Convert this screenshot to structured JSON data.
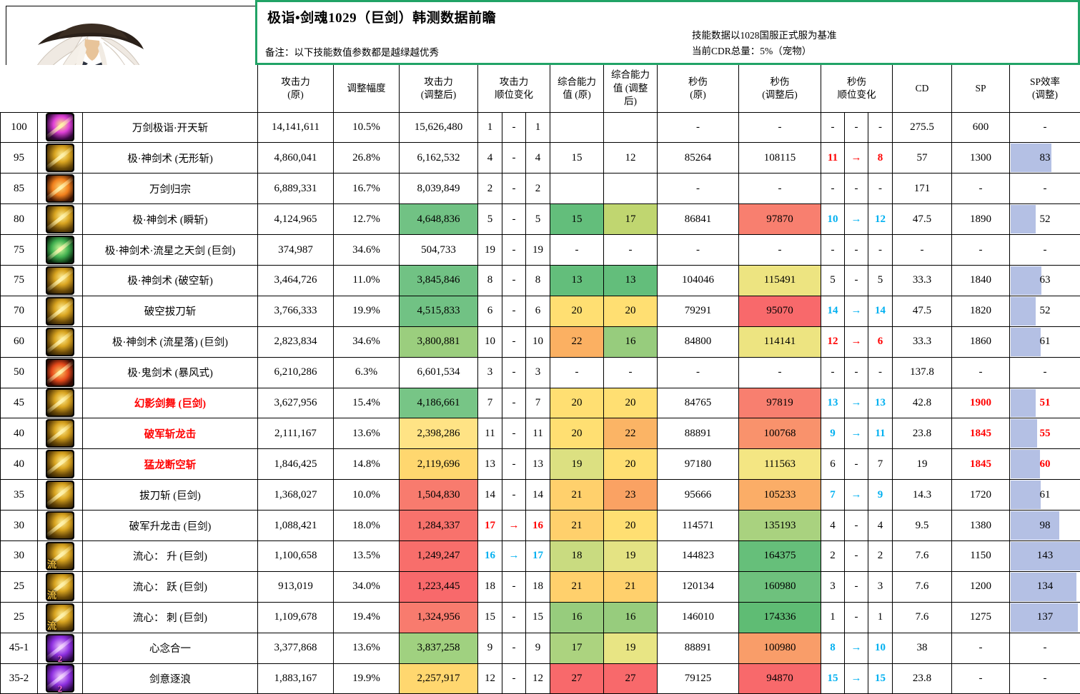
{
  "title_box": {
    "title": "极诣•剑魂1029（巨剑）韩测数据前瞻",
    "note": "备注：以下技能数值参数都是越绿越优秀",
    "note_right_line1": "技能数据以1028国服正式服为基准",
    "note_right_line2": "当前CDR总量：5%（宠物）",
    "border_color": "#21A366"
  },
  "table": {
    "header_cells": [
      {
        "label": "攻击力\n(原)"
      },
      {
        "label": "调整幅度"
      },
      {
        "label": "攻击力\n(调整后)"
      },
      {
        "label": "攻击力\n顺位变化",
        "span": 3
      },
      {
        "label": "综合能力\n值 (原)"
      },
      {
        "label": "综合能力\n值 (调整\n后)"
      },
      {
        "label": "秒伤\n(原)"
      },
      {
        "label": "秒伤\n(调整后)"
      },
      {
        "label": "秒伤\n顺位变化",
        "span": 3
      },
      {
        "label": "CD"
      },
      {
        "label": "SP"
      },
      {
        "label": "SP效率\n(调整)"
      }
    ],
    "bar_color": "#B4C0E4",
    "rank_colors": {
      "red": "#FF0000",
      "blue": "#00B0F0"
    },
    "rows": [
      {
        "level": "100",
        "icon_palette": "ic-magenta",
        "icon_char": "",
        "icon_badge": "",
        "name": "万剑极诣·开天斩",
        "name_red": false,
        "atk_orig": "14,141,611",
        "adjust": "10.5%",
        "atk_new": "15,626,480",
        "atk_new_bg": "",
        "atk_rank": [
          "1",
          "-",
          "1"
        ],
        "atk_rank_color": "black",
        "comp_orig": "",
        "comp_orig_bg": "",
        "comp_new": "",
        "comp_new_bg": "",
        "dps_orig": "-",
        "dps_new": "-",
        "dps_new_bg": "",
        "dps_rank": [
          "-",
          "-",
          "-"
        ],
        "dps_rank_color": "black",
        "cd": "275.5",
        "sp": "600",
        "sp_red": false,
        "eff": "-",
        "eff_red": false,
        "eff_bar": 0
      },
      {
        "level": "95",
        "icon_palette": "ic-gold",
        "icon_char": "",
        "icon_badge": "",
        "name": "极·神剑术 (无形斩)",
        "name_red": false,
        "atk_orig": "4,860,041",
        "adjust": "26.8%",
        "atk_new": "6,162,532",
        "atk_new_bg": "",
        "atk_rank": [
          "4",
          "-",
          "4"
        ],
        "atk_rank_color": "black",
        "comp_orig": "15",
        "comp_orig_bg": "",
        "comp_new": "12",
        "comp_new_bg": "",
        "dps_orig": "85264",
        "dps_new": "108115",
        "dps_new_bg": "",
        "dps_rank": [
          "11",
          "→",
          "8"
        ],
        "dps_rank_color": "red",
        "cd": "57",
        "sp": "1300",
        "sp_red": false,
        "eff": "83",
        "eff_red": false,
        "eff_bar": 58
      },
      {
        "level": "85",
        "icon_palette": "ic-orange",
        "icon_char": "",
        "icon_badge": "",
        "name": "万剑归宗",
        "name_red": false,
        "atk_orig": "6,889,331",
        "adjust": "16.7%",
        "atk_new": "8,039,849",
        "atk_new_bg": "",
        "atk_rank": [
          "2",
          "-",
          "2"
        ],
        "atk_rank_color": "black",
        "comp_orig": "",
        "comp_orig_bg": "",
        "comp_new": "",
        "comp_new_bg": "",
        "dps_orig": "-",
        "dps_new": "-",
        "dps_new_bg": "",
        "dps_rank": [
          "-",
          "-",
          "-"
        ],
        "dps_rank_color": "black",
        "cd": "171",
        "sp": "-",
        "sp_red": false,
        "eff": "-",
        "eff_red": false,
        "eff_bar": 0
      },
      {
        "level": "80",
        "icon_palette": "ic-gold",
        "icon_char": "",
        "icon_badge": "",
        "name": "极·神剑术 (瞬斩)",
        "name_red": false,
        "atk_orig": "4,124,965",
        "adjust": "12.7%",
        "atk_new": "4,648,836",
        "atk_new_bg": "#71C284",
        "atk_rank": [
          "5",
          "-",
          "5"
        ],
        "atk_rank_color": "black",
        "comp_orig": "15",
        "comp_orig_bg": "#63BE7B",
        "comp_new": "17",
        "comp_new_bg": "#C0D670",
        "dps_orig": "86841",
        "dps_new": "97870",
        "dps_new_bg": "#F87F6F",
        "dps_rank": [
          "10",
          "→",
          "12"
        ],
        "dps_rank_color": "blue",
        "cd": "47.5",
        "sp": "1890",
        "sp_red": false,
        "eff": "52",
        "eff_red": false,
        "eff_bar": 36
      },
      {
        "level": "75",
        "icon_palette": "ic-green",
        "icon_char": "",
        "icon_badge": "",
        "name": "极·神剑术·流星之天剑 (巨剑)",
        "name_red": false,
        "atk_orig": "374,987",
        "adjust": "34.6%",
        "atk_new": "504,733",
        "atk_new_bg": "",
        "atk_rank": [
          "19",
          "-",
          "19"
        ],
        "atk_rank_color": "black",
        "comp_orig": "-",
        "comp_orig_bg": "",
        "comp_new": "-",
        "comp_new_bg": "",
        "dps_orig": "-",
        "dps_new": "-",
        "dps_new_bg": "",
        "dps_rank": [
          "-",
          "-",
          "-"
        ],
        "dps_rank_color": "black",
        "cd": "-",
        "sp": "-",
        "sp_red": false,
        "eff": "-",
        "eff_red": false,
        "eff_bar": 0
      },
      {
        "level": "75",
        "icon_palette": "ic-gold",
        "icon_char": "",
        "icon_badge": "",
        "name": "极·神剑术 (破空斩)",
        "name_red": false,
        "atk_orig": "3,464,726",
        "adjust": "11.0%",
        "atk_new": "3,845,846",
        "atk_new_bg": "#71C284",
        "atk_rank": [
          "8",
          "-",
          "8"
        ],
        "atk_rank_color": "black",
        "comp_orig": "13",
        "comp_orig_bg": "#63BE7B",
        "comp_new": "13",
        "comp_new_bg": "#63BE7B",
        "dps_orig": "104046",
        "dps_new": "115491",
        "dps_new_bg": "#EDE481",
        "dps_rank": [
          "5",
          "-",
          "5"
        ],
        "dps_rank_color": "black",
        "cd": "33.3",
        "sp": "1840",
        "sp_red": false,
        "eff": "63",
        "eff_red": false,
        "eff_bar": 44
      },
      {
        "level": "70",
        "icon_palette": "ic-gold",
        "icon_char": "",
        "icon_badge": "",
        "name": "破空拔刀斩",
        "name_red": false,
        "atk_orig": "3,766,333",
        "adjust": "19.9%",
        "atk_new": "4,515,833",
        "atk_new_bg": "#71C284",
        "atk_rank": [
          "6",
          "-",
          "6"
        ],
        "atk_rank_color": "black",
        "comp_orig": "20",
        "comp_orig_bg": "#FFDF72",
        "comp_new": "20",
        "comp_new_bg": "#FFDF72",
        "dps_orig": "79291",
        "dps_new": "95070",
        "dps_new_bg": "#F8696B",
        "dps_rank": [
          "14",
          "→",
          "14"
        ],
        "dps_rank_color": "blue",
        "cd": "47.5",
        "sp": "1820",
        "sp_red": false,
        "eff": "52",
        "eff_red": false,
        "eff_bar": 36
      },
      {
        "level": "60",
        "icon_palette": "ic-gold",
        "icon_char": "",
        "icon_badge": "",
        "name": "极·神剑术 (流星落) (巨剑)",
        "name_red": false,
        "atk_orig": "2,823,834",
        "adjust": "34.6%",
        "atk_new": "3,800,881",
        "atk_new_bg": "#9BCE7E",
        "atk_rank": [
          "10",
          "-",
          "10"
        ],
        "atk_rank_color": "black",
        "comp_orig": "22",
        "comp_orig_bg": "#FBB062",
        "comp_new": "16",
        "comp_new_bg": "#97CC7D",
        "dps_orig": "84800",
        "dps_new": "114141",
        "dps_new_bg": "#EDE481",
        "dps_rank": [
          "12",
          "→",
          "6"
        ],
        "dps_rank_color": "red",
        "cd": "33.3",
        "sp": "1860",
        "sp_red": false,
        "eff": "61",
        "eff_red": false,
        "eff_bar": 43
      },
      {
        "level": "50",
        "icon_palette": "ic-red",
        "icon_char": "",
        "icon_badge": "",
        "name": "极·鬼剑术 (暴风式)",
        "name_red": false,
        "atk_orig": "6,210,286",
        "adjust": "6.3%",
        "atk_new": "6,601,534",
        "atk_new_bg": "",
        "atk_rank": [
          "3",
          "-",
          "3"
        ],
        "atk_rank_color": "black",
        "comp_orig": "-",
        "comp_orig_bg": "",
        "comp_new": "-",
        "comp_new_bg": "",
        "dps_orig": "-",
        "dps_new": "-",
        "dps_new_bg": "",
        "dps_rank": [
          "-",
          "-",
          "-"
        ],
        "dps_rank_color": "black",
        "cd": "137.8",
        "sp": "-",
        "sp_red": false,
        "eff": "-",
        "eff_red": false,
        "eff_bar": 0
      },
      {
        "level": "45",
        "icon_palette": "ic-gold",
        "icon_char": "",
        "icon_badge": "",
        "name": "幻影剑舞 (巨剑)",
        "name_red": true,
        "atk_orig": "3,627,956",
        "adjust": "15.4%",
        "atk_new": "4,186,661",
        "atk_new_bg": "#77C586",
        "atk_rank": [
          "7",
          "-",
          "7"
        ],
        "atk_rank_color": "black",
        "comp_orig": "20",
        "comp_orig_bg": "#FFDF72",
        "comp_new": "20",
        "comp_new_bg": "#FFDF72",
        "dps_orig": "84765",
        "dps_new": "97819",
        "dps_new_bg": "#F87F6F",
        "dps_rank": [
          "13",
          "→",
          "13"
        ],
        "dps_rank_color": "blue",
        "cd": "42.8",
        "sp": "1900",
        "sp_red": true,
        "eff": "51",
        "eff_red": true,
        "eff_bar": 36
      },
      {
        "level": "40",
        "icon_palette": "ic-gold",
        "icon_char": "",
        "icon_badge": "",
        "name": "破军斩龙击",
        "name_red": true,
        "atk_orig": "2,111,167",
        "adjust": "13.6%",
        "atk_new": "2,398,286",
        "atk_new_bg": "#FFE385",
        "atk_rank": [
          "11",
          "-",
          "11"
        ],
        "atk_rank_color": "black",
        "comp_orig": "20",
        "comp_orig_bg": "#FFDF72",
        "comp_new": "22",
        "comp_new_bg": "#FBB465",
        "dps_orig": "88891",
        "dps_new": "100768",
        "dps_new_bg": "#F9926C",
        "dps_rank": [
          "9",
          "→",
          "11"
        ],
        "dps_rank_color": "blue",
        "cd": "23.8",
        "sp": "1845",
        "sp_red": true,
        "eff": "55",
        "eff_red": true,
        "eff_bar": 38
      },
      {
        "level": "40",
        "icon_palette": "ic-gold",
        "icon_char": "",
        "icon_badge": "",
        "name": "猛龙断空斩",
        "name_red": true,
        "atk_orig": "1,846,425",
        "adjust": "14.8%",
        "atk_new": "2,119,696",
        "atk_new_bg": "#FFD76F",
        "atk_rank": [
          "13",
          "-",
          "13"
        ],
        "atk_rank_color": "black",
        "comp_orig": "19",
        "comp_orig_bg": "#DCE081",
        "comp_new": "20",
        "comp_new_bg": "#FFDF72",
        "dps_orig": "97180",
        "dps_new": "111563",
        "dps_new_bg": "#F4E683",
        "dps_rank": [
          "6",
          "-",
          "7"
        ],
        "dps_rank_color": "black",
        "cd": "19",
        "sp": "1845",
        "sp_red": true,
        "eff": "60",
        "eff_red": true,
        "eff_bar": 42
      },
      {
        "level": "35",
        "icon_palette": "ic-gold",
        "icon_char": "",
        "icon_badge": "",
        "name": "拔刀斩 (巨剑)",
        "name_red": false,
        "atk_orig": "1,368,027",
        "adjust": "10.0%",
        "atk_new": "1,504,830",
        "atk_new_bg": "#F87B6E",
        "atk_rank": [
          "14",
          "-",
          "14"
        ],
        "atk_rank_color": "black",
        "comp_orig": "21",
        "comp_orig_bg": "#FFD06C",
        "comp_new": "23",
        "comp_new_bg": "#FAA263",
        "dps_orig": "95666",
        "dps_new": "105233",
        "dps_new_bg": "#FBAD67",
        "dps_rank": [
          "7",
          "→",
          "9"
        ],
        "dps_rank_color": "blue",
        "cd": "14.3",
        "sp": "1720",
        "sp_red": false,
        "eff": "61",
        "eff_red": false,
        "eff_bar": 43
      },
      {
        "level": "30",
        "icon_palette": "ic-gold",
        "icon_char": "",
        "icon_badge": "",
        "name": "破军升龙击 (巨剑)",
        "name_red": false,
        "atk_orig": "1,088,421",
        "adjust": "18.0%",
        "atk_new": "1,284,337",
        "atk_new_bg": "#F8726C",
        "atk_rank": [
          "17",
          "→",
          "16"
        ],
        "atk_rank_color": "red",
        "comp_orig": "21",
        "comp_orig_bg": "#FFD06C",
        "comp_new": "20",
        "comp_new_bg": "#FFDF72",
        "dps_orig": "114571",
        "dps_new": "135193",
        "dps_new_bg": "#A9D27F",
        "dps_rank": [
          "4",
          "-",
          "4"
        ],
        "dps_rank_color": "black",
        "cd": "9.5",
        "sp": "1380",
        "sp_red": false,
        "eff": "98",
        "eff_red": false,
        "eff_bar": 69
      },
      {
        "level": "30",
        "icon_palette": "ic-gold",
        "icon_char": "流",
        "icon_badge": "",
        "name": "流心： 升 (巨剑)",
        "name_red": false,
        "atk_orig": "1,100,658",
        "adjust": "13.5%",
        "atk_new": "1,249,247",
        "atk_new_bg": "#F86E6B",
        "atk_rank": [
          "16",
          "→",
          "17"
        ],
        "atk_rank_color": "blue",
        "comp_orig": "18",
        "comp_orig_bg": "#C9DB80",
        "comp_new": "19",
        "comp_new_bg": "#E4E383",
        "dps_orig": "144823",
        "dps_new": "164375",
        "dps_new_bg": "#66BF7A",
        "dps_rank": [
          "2",
          "-",
          "2"
        ],
        "dps_rank_color": "black",
        "cd": "7.6",
        "sp": "1150",
        "sp_red": false,
        "eff": "143",
        "eff_red": false,
        "eff_bar": 100
      },
      {
        "level": "25",
        "icon_palette": "ic-gold",
        "icon_char": "流",
        "icon_badge": "",
        "name": "流心： 跃 (巨剑)",
        "name_red": false,
        "atk_orig": "913,019",
        "adjust": "34.0%",
        "atk_new": "1,223,445",
        "atk_new_bg": "#F8696B",
        "atk_rank": [
          "18",
          "-",
          "18"
        ],
        "atk_rank_color": "black",
        "comp_orig": "21",
        "comp_orig_bg": "#FFD06C",
        "comp_new": "21",
        "comp_new_bg": "#FFD06C",
        "dps_orig": "120134",
        "dps_new": "160980",
        "dps_new_bg": "#6EC17D",
        "dps_rank": [
          "3",
          "-",
          "3"
        ],
        "dps_rank_color": "black",
        "cd": "7.6",
        "sp": "1200",
        "sp_red": false,
        "eff": "134",
        "eff_red": false,
        "eff_bar": 94
      },
      {
        "level": "25",
        "icon_palette": "ic-gold",
        "icon_char": "流",
        "icon_badge": "",
        "name": "流心： 刺 (巨剑)",
        "name_red": false,
        "atk_orig": "1,109,678",
        "adjust": "19.4%",
        "atk_new": "1,324,956",
        "atk_new_bg": "#F87B6E",
        "atk_rank": [
          "15",
          "-",
          "15"
        ],
        "atk_rank_color": "black",
        "comp_orig": "16",
        "comp_orig_bg": "#97CC7D",
        "comp_new": "16",
        "comp_new_bg": "#97CC7D",
        "dps_orig": "146010",
        "dps_new": "174336",
        "dps_new_bg": "#5FBC74",
        "dps_rank": [
          "1",
          "-",
          "1"
        ],
        "dps_rank_color": "black",
        "cd": "7.6",
        "sp": "1275",
        "sp_red": false,
        "eff": "137",
        "eff_red": false,
        "eff_bar": 96
      },
      {
        "level": "45-1",
        "icon_palette": "ic-purple",
        "icon_char": "",
        "icon_badge": "2",
        "name": "心念合一",
        "name_red": false,
        "atk_orig": "3,377,868",
        "adjust": "13.6%",
        "atk_new": "3,837,258",
        "atk_new_bg": "#A0D180",
        "atk_rank": [
          "9",
          "-",
          "9"
        ],
        "atk_rank_color": "black",
        "comp_orig": "17",
        "comp_orig_bg": "#ACD37F",
        "comp_new": "19",
        "comp_new_bg": "#E8E584",
        "dps_orig": "88891",
        "dps_new": "100980",
        "dps_new_bg": "#F99D69",
        "dps_rank": [
          "8",
          "→",
          "10"
        ],
        "dps_rank_color": "blue",
        "cd": "38",
        "sp": "-",
        "sp_red": false,
        "eff": "-",
        "eff_red": false,
        "eff_bar": 0
      },
      {
        "level": "35-2",
        "icon_palette": "ic-purple",
        "icon_char": "",
        "icon_badge": "2",
        "name": "剑意逐浪",
        "name_red": false,
        "atk_orig": "1,883,167",
        "adjust": "19.9%",
        "atk_new": "2,257,917",
        "atk_new_bg": "#FFD76F",
        "atk_rank": [
          "12",
          "-",
          "12"
        ],
        "atk_rank_color": "black",
        "comp_orig": "27",
        "comp_orig_bg": "#F8696B",
        "comp_new": "27",
        "comp_new_bg": "#F8696B",
        "dps_orig": "79125",
        "dps_new": "94870",
        "dps_new_bg": "#F8696B",
        "dps_rank": [
          "15",
          "→",
          "15"
        ],
        "dps_rank_color": "blue",
        "cd": "23.8",
        "sp": "-",
        "sp_red": false,
        "eff": "-",
        "eff_red": false,
        "eff_bar": 0
      }
    ]
  }
}
